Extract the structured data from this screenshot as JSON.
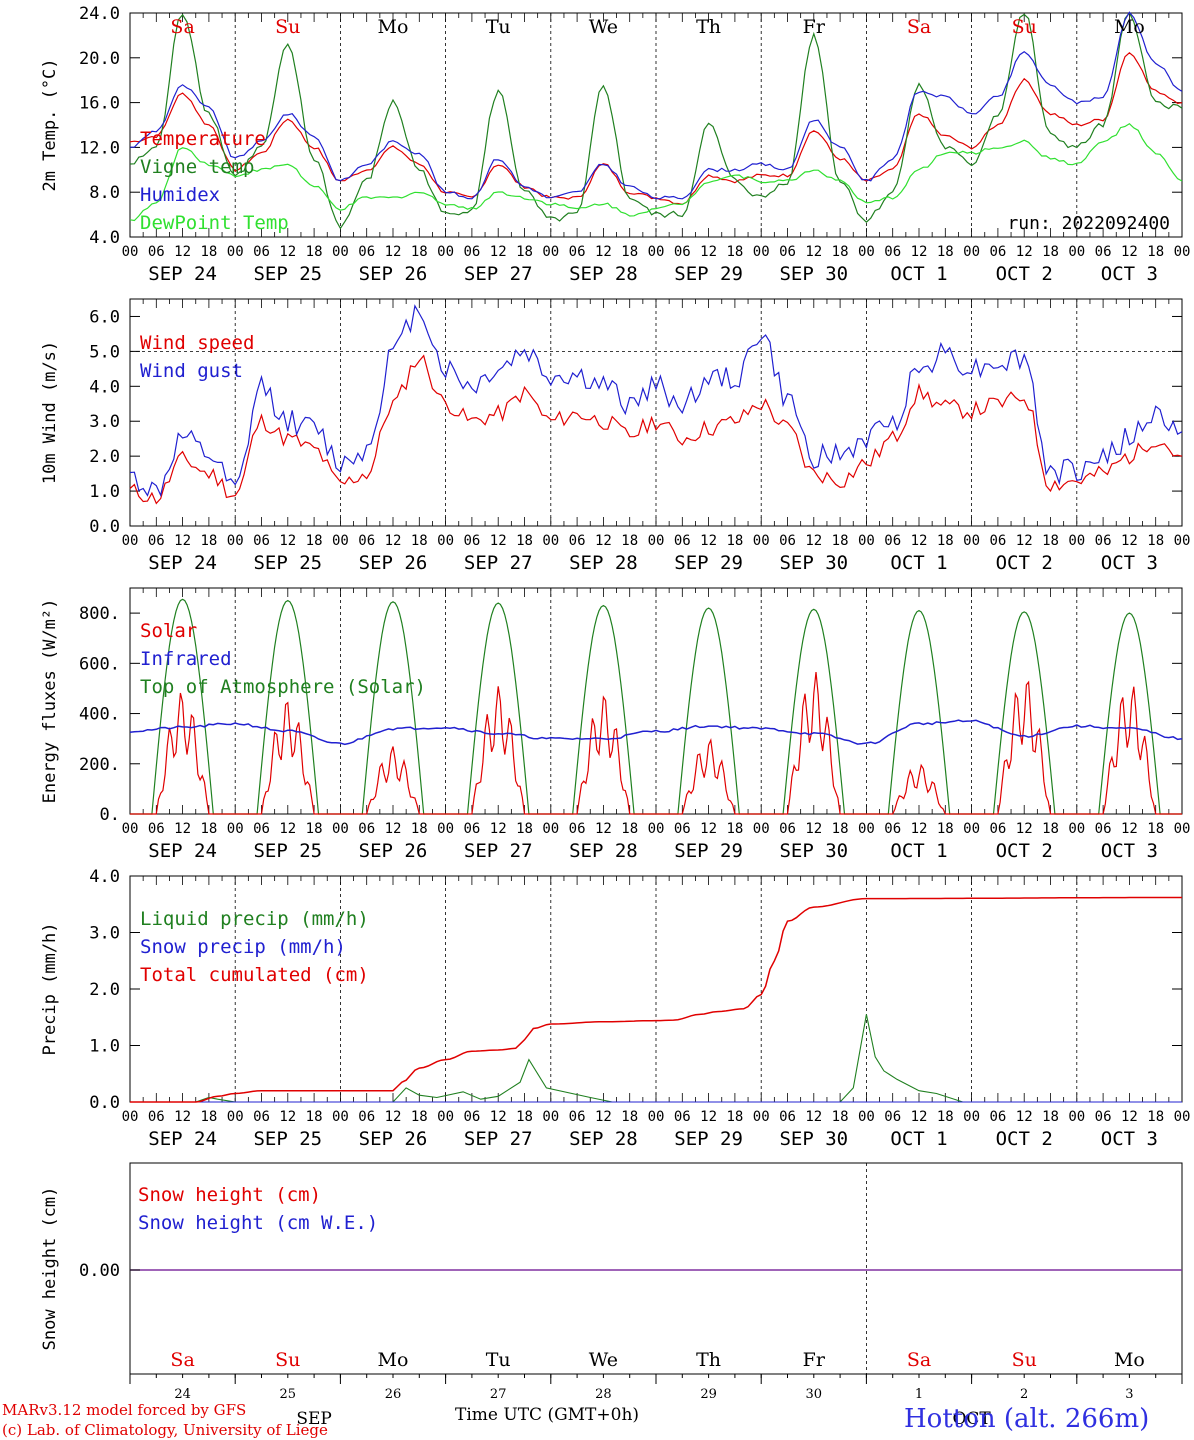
{
  "run_label": "run: 2022092400",
  "day_labels": [
    "Sa",
    "Su",
    "Mo",
    "Tu",
    "We",
    "Th",
    "Fr",
    "Sa",
    "Su",
    "Mo"
  ],
  "day_label_colors": [
    "#e00000",
    "#e00000",
    "#000000",
    "#000000",
    "#000000",
    "#000000",
    "#000000",
    "#e00000",
    "#e00000",
    "#000000"
  ],
  "date_labels": [
    "SEP 24",
    "SEP 25",
    "SEP 26",
    "SEP 27",
    "SEP 28",
    "SEP 29",
    "SEP 30",
    "OCT  1",
    "OCT  2",
    "OCT  3"
  ],
  "hour_labels": [
    "00",
    "06",
    "12",
    "18"
  ],
  "last_hour_label": "00",
  "day_numbers": [
    "24",
    "25",
    "26",
    "27",
    "28",
    "29",
    "30",
    "1",
    "2",
    "3"
  ],
  "footer": {
    "model": "MARv3.12 model forced by GFS",
    "lab": "(c) Lab. of Climatology, University of Liege",
    "xlabel": "Time UTC (GMT+0h)",
    "overlay_month": "SEP",
    "overlay_month2": "OCT",
    "station": "Hotton (alt. 266m)"
  },
  "chart_data": [
    {
      "type": "line",
      "ylabel": "2m Temp. (°C)",
      "ylim": [
        4.0,
        24.0
      ],
      "yticks": [
        "4.0",
        "8.0",
        "12.0",
        "16.0",
        "20.0",
        "24.0"
      ],
      "x": [
        0,
        6,
        12,
        18,
        24,
        30,
        36,
        42,
        48,
        54,
        60,
        66,
        72,
        78,
        84,
        90,
        96,
        102,
        108,
        114,
        120,
        126,
        132,
        138,
        144,
        150,
        156,
        162,
        168,
        174,
        180,
        186,
        192,
        198,
        204,
        210,
        216,
        222,
        228,
        234,
        240
      ],
      "series": [
        {
          "name": "Temperature",
          "color": "#e00000",
          "values": [
            12.5,
            13.0,
            16.8,
            14.0,
            10.0,
            11.5,
            14.5,
            12.0,
            9.0,
            10.0,
            12.0,
            10.5,
            8.0,
            7.5,
            10.5,
            8.5,
            7.5,
            7.5,
            10.5,
            8.0,
            7.5,
            7.0,
            9.5,
            9.0,
            9.5,
            9.5,
            13.5,
            11.0,
            9.0,
            10.0,
            15.0,
            13.0,
            12.0,
            14.0,
            18.0,
            15.0,
            14.0,
            14.5,
            20.5,
            17.0,
            16.0
          ]
        },
        {
          "name": "Vigne temp",
          "color": "#208020",
          "values": [
            10.5,
            12.0,
            24.0,
            15.0,
            9.5,
            12.0,
            21.0,
            11.0,
            5.0,
            9.0,
            16.0,
            10.0,
            6.0,
            6.5,
            17.0,
            8.0,
            5.5,
            6.0,
            17.5,
            7.5,
            6.0,
            6.0,
            14.0,
            9.0,
            7.5,
            9.0,
            22.0,
            9.0,
            5.5,
            8.0,
            17.5,
            12.0,
            10.5,
            15.0,
            24.0,
            13.0,
            12.0,
            14.0,
            24.0,
            16.0,
            15.5
          ]
        },
        {
          "name": "Humidex",
          "color": "#2020d0",
          "values": [
            12.0,
            13.5,
            17.5,
            15.5,
            11.0,
            12.5,
            15.0,
            13.0,
            9.0,
            10.5,
            12.5,
            11.5,
            8.0,
            7.5,
            11.0,
            8.5,
            7.5,
            8.0,
            10.5,
            8.5,
            7.5,
            7.5,
            10.0,
            10.0,
            10.5,
            10.0,
            14.5,
            12.0,
            9.0,
            11.0,
            17.0,
            16.5,
            15.0,
            16.5,
            20.5,
            17.5,
            16.0,
            16.5,
            24.0,
            19.5,
            17.0
          ]
        },
        {
          "name": "DewPoint Temp",
          "color": "#30e030",
          "values": [
            5.5,
            7.0,
            12.0,
            10.5,
            9.5,
            10.0,
            10.5,
            8.5,
            6.5,
            7.5,
            7.5,
            8.0,
            7.0,
            6.5,
            8.0,
            7.5,
            7.0,
            6.5,
            7.0,
            6.0,
            6.5,
            7.0,
            9.0,
            9.5,
            9.0,
            9.0,
            10.0,
            9.0,
            7.0,
            7.5,
            10.0,
            11.5,
            11.5,
            12.0,
            12.5,
            11.0,
            10.5,
            12.5,
            14.0,
            11.5,
            9.0
          ]
        }
      ]
    },
    {
      "type": "line",
      "ylabel": "10m Wind (m/s)",
      "ylim": [
        0.0,
        6.5
      ],
      "yticks": [
        "0.0",
        "1.0",
        "2.0",
        "3.0",
        "4.0",
        "5.0",
        "6.0"
      ],
      "x": [
        0,
        6,
        12,
        18,
        24,
        30,
        36,
        42,
        48,
        54,
        60,
        66,
        72,
        78,
        84,
        90,
        96,
        102,
        108,
        114,
        120,
        126,
        132,
        138,
        144,
        150,
        156,
        162,
        168,
        174,
        180,
        186,
        192,
        198,
        204,
        210,
        216,
        222,
        228,
        234,
        240
      ],
      "series": [
        {
          "name": "Wind speed",
          "color": "#e00000",
          "values": [
            1.0,
            0.8,
            1.9,
            1.5,
            0.9,
            3.0,
            2.5,
            2.2,
            1.2,
            1.5,
            3.5,
            4.8,
            3.5,
            3.0,
            3.2,
            3.8,
            3.0,
            3.2,
            3.0,
            2.6,
            3.0,
            2.5,
            2.8,
            3.0,
            3.5,
            2.8,
            1.5,
            1.3,
            1.8,
            2.5,
            3.8,
            3.4,
            3.3,
            3.5,
            3.7,
            1.2,
            1.3,
            1.5,
            2.0,
            2.5,
            2.0
          ]
        },
        {
          "name": "Wind gust",
          "color": "#2020d0",
          "values": [
            1.4,
            1.0,
            2.5,
            2.0,
            1.0,
            4.0,
            3.0,
            2.8,
            1.8,
            2.2,
            5.0,
            6.2,
            4.5,
            4.0,
            4.5,
            5.0,
            4.3,
            4.3,
            4.0,
            3.5,
            4.0,
            3.5,
            4.2,
            4.2,
            5.5,
            3.6,
            2.0,
            2.0,
            2.5,
            3.0,
            4.5,
            5.0,
            4.5,
            4.7,
            4.8,
            1.5,
            1.6,
            2.0,
            2.5,
            3.2,
            2.7
          ]
        }
      ]
    },
    {
      "type": "line",
      "ylabel": "Energy fluxes (W/m²)",
      "ylim": [
        0,
        900
      ],
      "yticks": [
        "0.",
        "200.",
        "400.",
        "600.",
        "800."
      ],
      "series": [
        {
          "name": "Solar",
          "color": "#e00000",
          "peaks": [
            490,
            460,
            270,
            510,
            480,
            300,
            570,
            200,
            555,
            525
          ]
        },
        {
          "name": "Infrared",
          "color": "#2020d0",
          "x": [
            0,
            12,
            24,
            36,
            48,
            60,
            72,
            84,
            96,
            108,
            120,
            132,
            144,
            156,
            168,
            180,
            192,
            204,
            216,
            228,
            240
          ],
          "values": [
            330,
            345,
            360,
            330,
            280,
            340,
            345,
            320,
            300,
            300,
            330,
            350,
            340,
            320,
            280,
            360,
            370,
            310,
            350,
            340,
            300
          ]
        },
        {
          "name": "Top of Atmosphere (Solar)",
          "color": "#208020",
          "peaks": [
            855,
            850,
            845,
            840,
            830,
            820,
            815,
            810,
            805,
            800
          ]
        }
      ]
    },
    {
      "type": "line",
      "ylabel": "Precip (mm/h)",
      "ylim": [
        0.0,
        4.0
      ],
      "yticks": [
        "0.0",
        "1.0",
        "2.0",
        "3.0",
        "4.0"
      ],
      "series": [
        {
          "name": "Liquid precip (mm/h)",
          "color": "#208020",
          "x": [
            0,
            15,
            18,
            20,
            24,
            60,
            63,
            66,
            70,
            76,
            80,
            84,
            89,
            91,
            95,
            105,
            110,
            162,
            165,
            168,
            170,
            172,
            175,
            180,
            184,
            190,
            240
          ],
          "values": [
            0,
            0,
            0.08,
            0.05,
            0,
            0,
            0.25,
            0.12,
            0.08,
            0.18,
            0.05,
            0.1,
            0.35,
            0.75,
            0.25,
            0.08,
            0,
            0,
            0.25,
            1.55,
            0.8,
            0.55,
            0.4,
            0.2,
            0.15,
            0,
            0
          ]
        },
        {
          "name": "Snow precip (mm/h)",
          "color": "#2020d0",
          "x": [
            0,
            240
          ],
          "values": [
            0,
            0
          ]
        },
        {
          "name": "Total cumulated (cm)",
          "color": "#e00000",
          "x": [
            0,
            15,
            20,
            24,
            30,
            60,
            62,
            66,
            72,
            78,
            84,
            88,
            90,
            92,
            96,
            108,
            120,
            124,
            130,
            134,
            140,
            144,
            147,
            150,
            156,
            168,
            240
          ],
          "values": [
            0,
            0,
            0.1,
            0.15,
            0.2,
            0.2,
            0.35,
            0.6,
            0.75,
            0.9,
            0.92,
            0.95,
            1.1,
            1.3,
            1.38,
            1.42,
            1.44,
            1.45,
            1.55,
            1.6,
            1.65,
            1.9,
            2.5,
            3.2,
            3.45,
            3.6,
            3.62
          ]
        }
      ]
    },
    {
      "type": "line",
      "ylabel": "Snow height (cm)",
      "yticks": [
        "0.00"
      ],
      "series": [
        {
          "name": "Snow height (cm)",
          "color": "#e00000",
          "values": [
            0,
            0
          ]
        },
        {
          "name": "Snow height (cm W.E.)",
          "color": "#2020d0",
          "values": [
            0,
            0
          ]
        }
      ]
    }
  ]
}
